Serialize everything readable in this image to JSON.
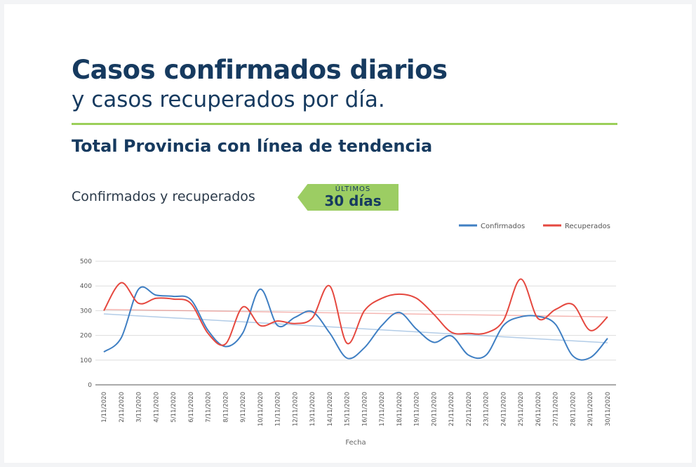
{
  "header": {
    "title": "Casos confirmados diarios",
    "subtitle": "y casos recuperados por día.",
    "heading": "Total Provincia con línea de tendencia"
  },
  "section": {
    "label": "Confirmados y recuperados",
    "badge_top": "ÚLTIMOS",
    "badge_main": "30 días"
  },
  "chart_data": {
    "type": "line",
    "xlabel": "Fecha",
    "ylabel": "",
    "ylim": [
      0,
      500
    ],
    "yticks": [
      0,
      100,
      200,
      300,
      400,
      500
    ],
    "grid": true,
    "legend_position": "top-right",
    "categories": [
      "1/11/2020",
      "2/11/2020",
      "3/11/2020",
      "4/11/2020",
      "5/11/2020",
      "6/11/2020",
      "7/11/2020",
      "8/11/2020",
      "9/11/2020",
      "10/11/2020",
      "11/11/2020",
      "12/11/2020",
      "13/11/2020",
      "14/11/2020",
      "15/11/2020",
      "16/11/2020",
      "17/11/2020",
      "18/11/2020",
      "19/11/2020",
      "20/11/2020",
      "21/11/2020",
      "22/11/2020",
      "23/11/2020",
      "24/11/2020",
      "25/11/2020",
      "26/11/2020",
      "27/11/2020",
      "28/11/2020",
      "29/11/2020",
      "30/11/2020"
    ],
    "series": [
      {
        "name": "Confirmados",
        "color": "#3f7fc3",
        "values": [
          133,
          190,
          387,
          363,
          358,
          345,
          220,
          155,
          210,
          387,
          240,
          273,
          296,
          210,
          108,
          150,
          240,
          293,
          225,
          172,
          198,
          120,
          120,
          240,
          275,
          277,
          245,
          117,
          110,
          188
        ],
        "trend": [
          287,
          170
        ]
      },
      {
        "name": "Recuperados",
        "color": "#e5483f",
        "values": [
          300,
          413,
          330,
          350,
          347,
          330,
          208,
          165,
          315,
          240,
          258,
          248,
          270,
          400,
          168,
          300,
          350,
          367,
          350,
          285,
          213,
          208,
          210,
          260,
          428,
          268,
          305,
          325,
          220,
          275
        ],
        "trend": [
          305,
          275
        ]
      }
    ]
  }
}
